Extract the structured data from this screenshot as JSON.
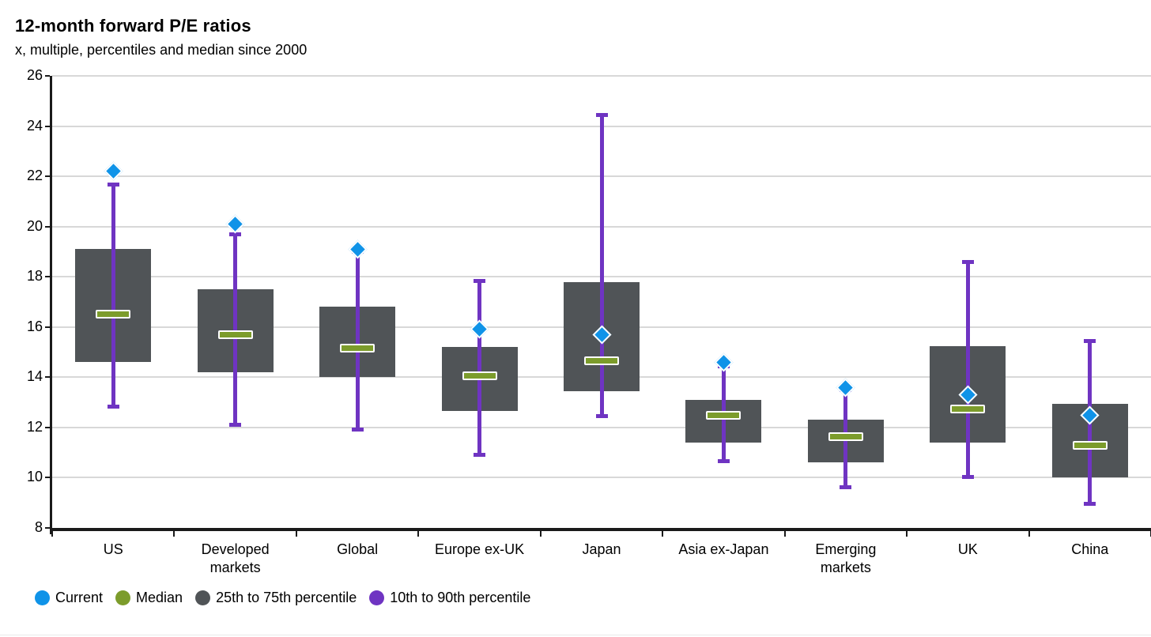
{
  "title": "12-month forward P/E ratios",
  "subtitle": "x, multiple, percentiles and median since 2000",
  "colors": {
    "current_blue": "#0f93e8",
    "median_green": "#7c9c2b",
    "box_gray": "#505457",
    "whisker_purple": "#6f34c2",
    "gridline_gray": "#d8d8d8",
    "axis_black": "#1a1a1a"
  },
  "legend": {
    "items": [
      {
        "label": "Current",
        "color": "#0f93e8"
      },
      {
        "label": "Median",
        "color": "#7c9c2b"
      },
      {
        "label": "25th to 75th percentile",
        "color": "#505457"
      },
      {
        "label": "10th to 90th percentile",
        "color": "#6f34c2"
      }
    ]
  },
  "chart_data": {
    "type": "box",
    "title": "12-month forward P/E ratios",
    "subtitle": "x, multiple, percentiles and median since 2000",
    "xlabel": "",
    "ylabel": "x, multiple",
    "ylim": [
      8,
      26
    ],
    "ytick_step": 2,
    "grid": "horizontal",
    "legend_position": "bottom",
    "categories": [
      "US",
      "Developed\nmarkets",
      "Global",
      "Europe ex-UK",
      "Japan",
      "Asia ex-Japan",
      "Emerging\nmarkets",
      "UK",
      "China"
    ],
    "series": [
      {
        "name": "Current",
        "values": [
          22.2,
          20.1,
          19.1,
          15.9,
          15.7,
          14.6,
          13.6,
          13.3,
          12.5
        ]
      },
      {
        "name": "Median",
        "values": [
          16.5,
          15.7,
          15.15,
          14.05,
          14.65,
          12.5,
          11.65,
          12.75,
          11.3
        ]
      },
      {
        "name": "75th percentile",
        "values": [
          19.1,
          17.5,
          16.8,
          15.2,
          17.8,
          13.1,
          12.3,
          15.25,
          12.95
        ]
      },
      {
        "name": "25th percentile",
        "values": [
          14.6,
          14.2,
          14.0,
          12.65,
          13.45,
          11.4,
          10.6,
          11.4,
          10.0
        ]
      },
      {
        "name": "90th percentile",
        "values": [
          21.7,
          19.7,
          19.0,
          17.85,
          24.45,
          14.45,
          13.5,
          18.6,
          15.45
        ]
      },
      {
        "name": "10th percentile",
        "values": [
          12.8,
          12.1,
          11.9,
          10.9,
          12.45,
          10.65,
          9.6,
          10.0,
          8.95
        ]
      }
    ]
  }
}
